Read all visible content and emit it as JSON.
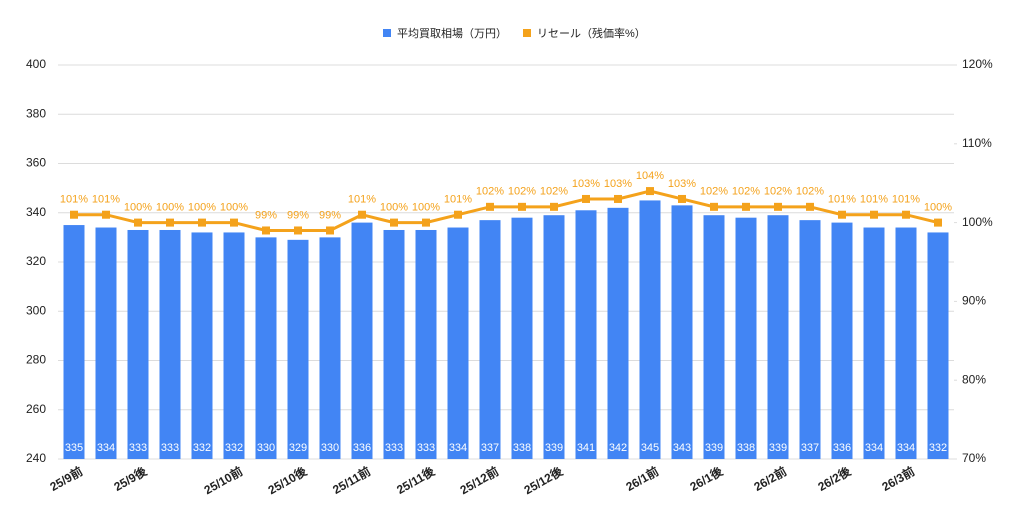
{
  "chart_data": {
    "type": "bar-line",
    "categories": [
      "25/9前",
      null,
      "25/9後",
      null,
      null,
      "25/10前",
      null,
      "25/10後",
      null,
      "25/11前",
      null,
      "25/11後",
      null,
      "25/12前",
      null,
      "25/12後",
      null,
      null,
      "26/1前",
      null,
      "26/1後",
      null,
      "26/2前",
      null,
      "26/2後",
      null,
      "26/3前",
      null
    ],
    "series": [
      {
        "name": "平均買取相場（万円）",
        "type": "bar",
        "color": "#4285f4",
        "values": [
          335,
          334,
          333,
          333,
          332,
          332,
          330,
          329,
          330,
          336,
          333,
          333,
          334,
          337,
          338,
          339,
          341,
          342,
          345,
          343,
          339,
          338,
          339,
          337,
          336,
          334,
          334,
          332
        ]
      },
      {
        "name": "リセール（残価率%）",
        "type": "line",
        "axis": "y2",
        "color": "#f4a21b",
        "values": [
          101,
          101,
          100,
          100,
          100,
          100,
          99,
          99,
          99,
          101,
          100,
          100,
          101,
          102,
          102,
          102,
          103,
          103,
          104,
          103,
          102,
          102,
          102,
          102,
          101,
          101,
          101,
          100
        ],
        "value_labels": [
          "101%",
          "101%",
          "100%",
          "100%",
          "100%",
          "100%",
          "99%",
          "99%",
          "99%",
          "101%",
          "100%",
          "100%",
          "101%",
          "102%",
          "102%",
          "102%",
          "103%",
          "103%",
          "104%",
          "103%",
          "102%",
          "102%",
          "102%",
          "102%",
          "101%",
          "101%",
          "101%",
          "100%"
        ]
      }
    ],
    "ylim": [
      240,
      400
    ],
    "yticks": [
      240,
      260,
      280,
      300,
      320,
      340,
      360,
      380,
      400
    ],
    "y2lim": [
      70,
      120
    ],
    "y2ticks": [
      {
        "value": 70,
        "label": "70%"
      },
      {
        "value": 80,
        "label": "80%"
      },
      {
        "value": 90,
        "label": "90%"
      },
      {
        "value": 100,
        "label": "100%"
      },
      {
        "value": 110,
        "label": "110%"
      },
      {
        "value": 120,
        "label": "120%"
      }
    ],
    "grid": true,
    "legend": "top"
  }
}
